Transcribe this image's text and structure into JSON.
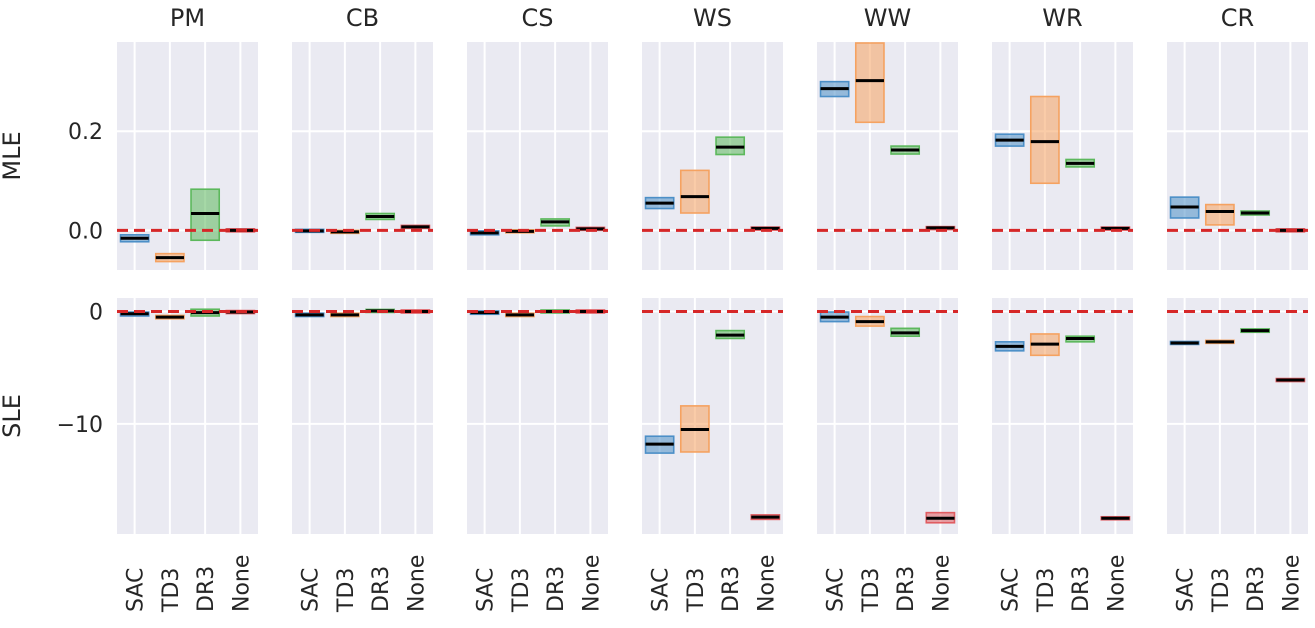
{
  "chart_data": {
    "type": "box",
    "columns": [
      "PM",
      "CB",
      "CS",
      "WS",
      "WW",
      "WR",
      "CR"
    ],
    "categories": [
      "SAC",
      "TD3",
      "DR3",
      "None"
    ],
    "colors": {
      "SAC": "#4c8fc7",
      "TD3": "#f5a261",
      "DR3": "#5cb85c",
      "None": "#e05c61",
      "reference": "#d62728"
    },
    "reference_line": 0,
    "rows": [
      {
        "label": "MLE",
        "ylim": [
          -0.08,
          0.38
        ],
        "yticks": [
          0.0,
          0.2
        ],
        "ytick_labels": [
          "0.0",
          "0.2"
        ],
        "panels": [
          {
            "column": "PM",
            "series": [
              {
                "name": "SAC",
                "median": -0.016,
                "q1": -0.023,
                "q3": -0.009
              },
              {
                "name": "TD3",
                "median": -0.055,
                "q1": -0.063,
                "q3": -0.047
              },
              {
                "name": "DR3",
                "median": 0.034,
                "q1": -0.02,
                "q3": 0.083
              },
              {
                "name": "None",
                "median": 0.0,
                "q1": -0.001,
                "q3": 0.001
              }
            ]
          },
          {
            "column": "CB",
            "series": [
              {
                "name": "SAC",
                "median": -0.001,
                "q1": -0.004,
                "q3": 0.002
              },
              {
                "name": "TD3",
                "median": -0.003,
                "q1": -0.005,
                "q3": -0.001
              },
              {
                "name": "DR3",
                "median": 0.028,
                "q1": 0.022,
                "q3": 0.034
              },
              {
                "name": "None",
                "median": 0.007,
                "q1": 0.004,
                "q3": 0.01
              }
            ]
          },
          {
            "column": "CS",
            "series": [
              {
                "name": "SAC",
                "median": -0.005,
                "q1": -0.009,
                "q3": -0.001
              },
              {
                "name": "TD3",
                "median": -0.002,
                "q1": -0.004,
                "q3": 0.0
              },
              {
                "name": "DR3",
                "median": 0.017,
                "q1": 0.009,
                "q3": 0.023
              },
              {
                "name": "None",
                "median": 0.003,
                "q1": 0.001,
                "q3": 0.005
              }
            ]
          },
          {
            "column": "WS",
            "series": [
              {
                "name": "SAC",
                "median": 0.055,
                "q1": 0.044,
                "q3": 0.066
              },
              {
                "name": "TD3",
                "median": 0.068,
                "q1": 0.035,
                "q3": 0.121
              },
              {
                "name": "DR3",
                "median": 0.168,
                "q1": 0.153,
                "q3": 0.188
              },
              {
                "name": "None",
                "median": 0.004,
                "q1": 0.001,
                "q3": 0.006
              }
            ]
          },
          {
            "column": "WW",
            "series": [
              {
                "name": "SAC",
                "median": 0.286,
                "q1": 0.27,
                "q3": 0.3
              },
              {
                "name": "TD3",
                "median": 0.302,
                "q1": 0.218,
                "q3": 0.378
              },
              {
                "name": "DR3",
                "median": 0.162,
                "q1": 0.154,
                "q3": 0.17
              },
              {
                "name": "None",
                "median": 0.005,
                "q1": 0.002,
                "q3": 0.007
              }
            ]
          },
          {
            "column": "WR",
            "series": [
              {
                "name": "SAC",
                "median": 0.182,
                "q1": 0.17,
                "q3": 0.194
              },
              {
                "name": "TD3",
                "median": 0.179,
                "q1": 0.095,
                "q3": 0.27
              },
              {
                "name": "DR3",
                "median": 0.135,
                "q1": 0.128,
                "q3": 0.143
              },
              {
                "name": "None",
                "median": 0.004,
                "q1": 0.001,
                "q3": 0.006
              }
            ]
          },
          {
            "column": "CR",
            "series": [
              {
                "name": "SAC",
                "median": 0.047,
                "q1": 0.025,
                "q3": 0.067
              },
              {
                "name": "TD3",
                "median": 0.038,
                "q1": 0.011,
                "q3": 0.052
              },
              {
                "name": "DR3",
                "median": 0.035,
                "q1": 0.031,
                "q3": 0.039
              },
              {
                "name": "None",
                "median": 0.0,
                "q1": -0.001,
                "q3": 0.001
              }
            ]
          }
        ]
      },
      {
        "label": "SLE",
        "ylim": [
          -19.8,
          1.2
        ],
        "yticks": [
          0,
          -10
        ],
        "ytick_labels": [
          "0",
          "−10"
        ],
        "panels": [
          {
            "column": "PM",
            "series": [
              {
                "name": "SAC",
                "median": -0.2,
                "q1": -0.4,
                "q3": -0.05
              },
              {
                "name": "TD3",
                "median": -0.5,
                "q1": -0.65,
                "q3": -0.35
              },
              {
                "name": "DR3",
                "median": -0.1,
                "q1": -0.4,
                "q3": 0.2
              },
              {
                "name": "None",
                "median": -0.05,
                "q1": -0.15,
                "q3": 0.05
              }
            ]
          },
          {
            "column": "CB",
            "series": [
              {
                "name": "SAC",
                "median": -0.3,
                "q1": -0.45,
                "q3": -0.15
              },
              {
                "name": "TD3",
                "median": -0.3,
                "q1": -0.45,
                "q3": -0.15
              },
              {
                "name": "DR3",
                "median": 0.05,
                "q1": -0.05,
                "q3": 0.15
              },
              {
                "name": "None",
                "median": 0.0,
                "q1": -0.1,
                "q3": 0.1
              }
            ]
          },
          {
            "column": "CS",
            "series": [
              {
                "name": "SAC",
                "median": -0.1,
                "q1": -0.25,
                "q3": 0.05
              },
              {
                "name": "TD3",
                "median": -0.3,
                "q1": -0.45,
                "q3": -0.15
              },
              {
                "name": "DR3",
                "median": 0.0,
                "q1": -0.1,
                "q3": 0.1
              },
              {
                "name": "None",
                "median": 0.0,
                "q1": -0.1,
                "q3": 0.1
              }
            ]
          },
          {
            "column": "WS",
            "series": [
              {
                "name": "SAC",
                "median": -11.8,
                "q1": -12.6,
                "q3": -11.1
              },
              {
                "name": "TD3",
                "median": -10.5,
                "q1": -12.5,
                "q3": -8.4
              },
              {
                "name": "DR3",
                "median": -2.1,
                "q1": -2.4,
                "q3": -1.7
              },
              {
                "name": "None",
                "median": -18.3,
                "q1": -18.5,
                "q3": -18.1
              }
            ]
          },
          {
            "column": "WW",
            "series": [
              {
                "name": "SAC",
                "median": -0.5,
                "q1": -0.9,
                "q3": -0.05
              },
              {
                "name": "TD3",
                "median": -0.9,
                "q1": -1.3,
                "q3": -0.45
              },
              {
                "name": "DR3",
                "median": -1.9,
                "q1": -2.2,
                "q3": -1.5
              },
              {
                "name": "None",
                "median": -18.4,
                "q1": -18.8,
                "q3": -17.9
              }
            ]
          },
          {
            "column": "WR",
            "series": [
              {
                "name": "SAC",
                "median": -3.1,
                "q1": -3.5,
                "q3": -2.7
              },
              {
                "name": "TD3",
                "median": -2.9,
                "q1": -3.9,
                "q3": -2.0
              },
              {
                "name": "DR3",
                "median": -2.4,
                "q1": -2.7,
                "q3": -2.2
              },
              {
                "name": "None",
                "median": -18.4,
                "q1": -18.5,
                "q3": -18.3
              }
            ]
          },
          {
            "column": "CR",
            "series": [
              {
                "name": "SAC",
                "median": -2.8,
                "q1": -2.9,
                "q3": -2.7
              },
              {
                "name": "TD3",
                "median": -2.7,
                "q1": -2.8,
                "q3": -2.6
              },
              {
                "name": "DR3",
                "median": -1.7,
                "q1": -1.85,
                "q3": -1.55
              },
              {
                "name": "None",
                "median": -6.1,
                "q1": -6.2,
                "q3": -6.0
              }
            ]
          }
        ]
      }
    ]
  }
}
